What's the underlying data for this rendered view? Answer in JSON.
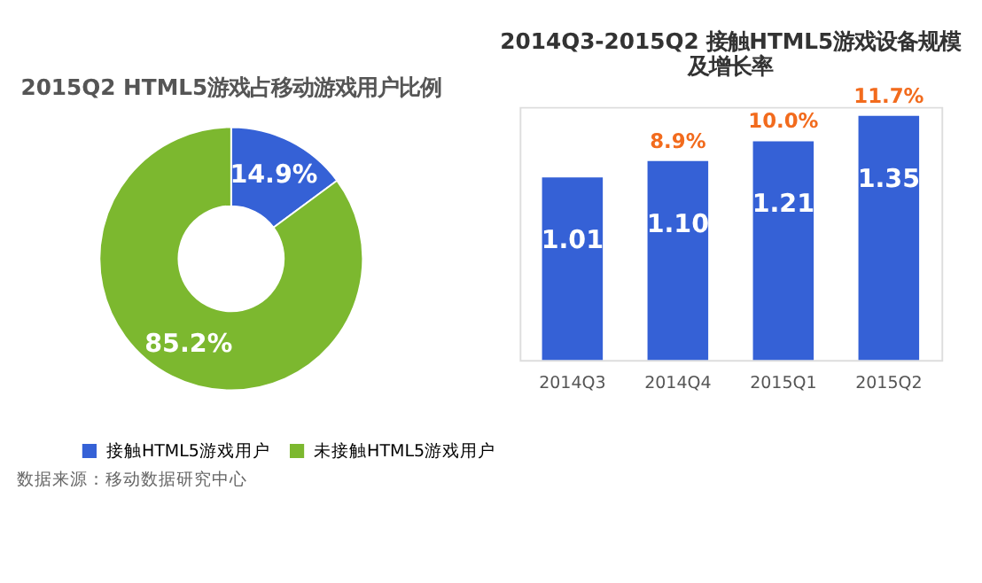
{
  "chart_data": [
    {
      "type": "donut",
      "title": "2015Q2 HTML5游戏占移动游戏用户比例",
      "categories": [
        "接触HTML5游戏用户",
        "未接触HTML5游戏用户"
      ],
      "values": [
        14.9,
        85.2
      ],
      "colors": [
        "#3561d6",
        "#7cb82f"
      ],
      "value_labels": [
        "14.9%",
        "85.2%"
      ],
      "legend": "bottom",
      "annotations": [
        "数据来源：移动数据研究中心"
      ]
    },
    {
      "type": "bar",
      "title": "2014Q3-2015Q2 接触HTML5游戏设备规模及增长率",
      "categories": [
        "2014Q3",
        "2014Q4",
        "2015Q1",
        "2015Q2"
      ],
      "values": [
        1.01,
        1.1,
        1.21,
        1.35
      ],
      "color": "#3561d6",
      "value_labels": [
        "1.01",
        "1.10",
        "1.21",
        "1.35"
      ],
      "annotations": [
        {
          "text": "8.9%",
          "x": "2014Q4",
          "y": 1.1
        },
        {
          "text": "10.0%",
          "x": "2015Q1",
          "y": 1.21
        },
        {
          "text": "11.7%",
          "x": "2015Q2",
          "y": 1.35
        }
      ]
    }
  ]
}
